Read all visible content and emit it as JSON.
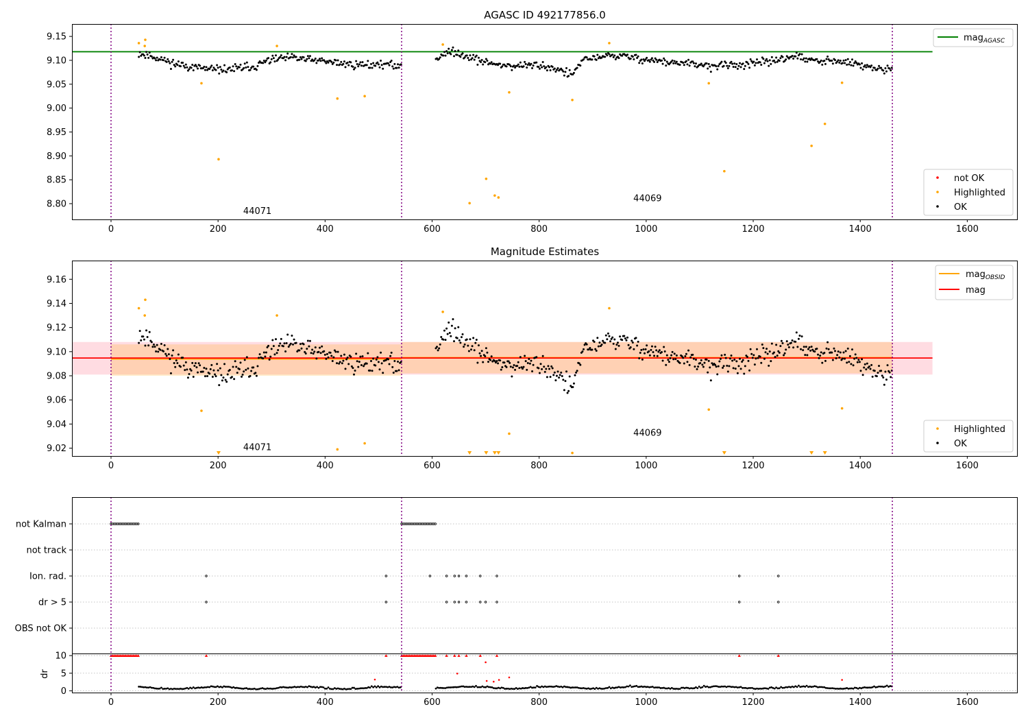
{
  "chart_data": [
    {
      "type": "scatter",
      "title": "AGASC ID 492177856.0",
      "xlim": [
        -73,
        1693
      ],
      "ylim": [
        8.767,
        9.176
      ],
      "xticks": [
        0,
        200,
        400,
        600,
        800,
        1000,
        1200,
        1400,
        1600
      ],
      "yticks": [
        8.8,
        8.85,
        8.9,
        8.95,
        9.0,
        9.05,
        9.1,
        9.15
      ],
      "hline": {
        "name": "mag",
        "subscript": "AGASC",
        "value": 9.118,
        "color": "#008000",
        "x_range": [
          -73,
          1535
        ]
      },
      "obsid_boundaries": [
        0,
        543,
        1460
      ],
      "obsid_labels": [
        {
          "text": "44071",
          "x": 271,
          "y": 8.784
        },
        {
          "text": "44069",
          "x": 1000,
          "y": 8.811
        }
      ],
      "legend": {
        "position": "lower-right",
        "entries": [
          {
            "label": "not OK",
            "color": "#ff0000"
          },
          {
            "label": "Highlighted",
            "color": "#ffa500"
          },
          {
            "label": "OK",
            "color": "#000000"
          }
        ]
      },
      "highlighted_points": [
        [
          52,
          9.136
        ],
        [
          63,
          9.13
        ],
        [
          64,
          9.143
        ],
        [
          169,
          9.052
        ],
        [
          201,
          8.893
        ],
        [
          310,
          9.13
        ],
        [
          423,
          9.02
        ],
        [
          474,
          9.025
        ],
        [
          620,
          9.133
        ],
        [
          670,
          8.801
        ],
        [
          701,
          8.852
        ],
        [
          717,
          8.817
        ],
        [
          724,
          8.813
        ],
        [
          744,
          9.033
        ],
        [
          862,
          9.017
        ],
        [
          931,
          9.136
        ],
        [
          1117,
          9.052
        ],
        [
          1146,
          8.868
        ],
        [
          1309,
          8.921
        ],
        [
          1334,
          8.967
        ],
        [
          1366,
          9.053
        ]
      ],
      "ok_segments": [
        {
          "x0": 52,
          "x1": 543,
          "step": 2,
          "anchors": [
            [
              52,
              9.115
            ],
            [
              80,
              9.108
            ],
            [
              120,
              9.092
            ],
            [
              160,
              9.085
            ],
            [
              190,
              9.08
            ],
            [
              230,
              9.082
            ],
            [
              270,
              9.088
            ],
            [
              300,
              9.102
            ],
            [
              340,
              9.105
            ],
            [
              380,
              9.1
            ],
            [
              420,
              9.095
            ],
            [
              460,
              9.09
            ],
            [
              500,
              9.092
            ],
            [
              543,
              9.088
            ]
          ]
        },
        {
          "x0": 607,
          "x1": 1460,
          "step": 2,
          "anchors": [
            [
              607,
              9.102
            ],
            [
              625,
              9.118
            ],
            [
              660,
              9.112
            ],
            [
              700,
              9.095
            ],
            [
              750,
              9.088
            ],
            [
              800,
              9.09
            ],
            [
              840,
              9.08
            ],
            [
              860,
              9.068
            ],
            [
              880,
              9.098
            ],
            [
              920,
              9.11
            ],
            [
              960,
              9.108
            ],
            [
              1000,
              9.102
            ],
            [
              1040,
              9.096
            ],
            [
              1080,
              9.092
            ],
            [
              1120,
              9.088
            ],
            [
              1160,
              9.09
            ],
            [
              1200,
              9.092
            ],
            [
              1240,
              9.1
            ],
            [
              1280,
              9.11
            ],
            [
              1300,
              9.1
            ],
            [
              1340,
              9.098
            ],
            [
              1380,
              9.095
            ],
            [
              1420,
              9.085
            ],
            [
              1460,
              9.078
            ]
          ]
        }
      ]
    },
    {
      "type": "scatter",
      "title": "Magnitude Estimates",
      "xlim": [
        -73,
        1693
      ],
      "ylim": [
        9.0135,
        9.1755
      ],
      "xticks": [
        0,
        200,
        400,
        600,
        800,
        1000,
        1200,
        1400,
        1600
      ],
      "yticks": [
        9.02,
        9.04,
        9.06,
        9.08,
        9.1,
        9.12,
        9.14,
        9.16
      ],
      "mag": {
        "name": "mag",
        "value": 9.0947,
        "color": "#ff0000",
        "band": [
          9.081,
          9.108
        ],
        "band_color": "#ffc0cb",
        "x_range": [
          -73,
          1535
        ]
      },
      "mag_obsid": {
        "name": "mag",
        "subscript": "OBSID",
        "color": "#ffa500",
        "segments": [
          {
            "x0": 0,
            "x1": 543,
            "value": 9.094,
            "band": [
              9.08,
              9.106
            ]
          },
          {
            "x0": 543,
            "x1": 1460,
            "value": 9.095,
            "band": [
              9.082,
              9.108
            ]
          }
        ]
      },
      "obsid_boundaries": [
        0,
        543,
        1460
      ],
      "obsid_labels": [
        {
          "text": "44071",
          "x": 271,
          "y": 9.0205
        },
        {
          "text": "44069",
          "x": 1000,
          "y": 9.0325
        }
      ],
      "legend": {
        "positions": [
          "top-right",
          "lower-right"
        ],
        "top": [
          {
            "label": "mag",
            "subscript": "OBSID",
            "color": "#ffa500"
          },
          {
            "label": "mag",
            "color": "#ff0000"
          }
        ],
        "bottom": [
          {
            "label": "Highlighted",
            "color": "#ffa500"
          },
          {
            "label": "OK",
            "color": "#000000"
          }
        ]
      },
      "highlighted_points": [
        [
          52,
          9.136
        ],
        [
          63,
          9.13
        ],
        [
          64,
          9.143
        ],
        [
          169,
          9.051
        ],
        [
          310,
          9.13
        ],
        [
          423,
          9.019
        ],
        [
          474,
          9.024
        ],
        [
          620,
          9.133
        ],
        [
          744,
          9.032
        ],
        [
          862,
          9.016
        ],
        [
          931,
          9.136
        ],
        [
          1117,
          9.052
        ],
        [
          1366,
          9.053
        ]
      ],
      "clipped_markers_x": [
        201,
        670,
        701,
        717,
        724,
        1146,
        1309,
        1334
      ],
      "ok_segments": [
        {
          "x0": 52,
          "x1": 543,
          "step": 2,
          "anchors": [
            [
              52,
              9.115
            ],
            [
              80,
              9.108
            ],
            [
              120,
              9.092
            ],
            [
              160,
              9.085
            ],
            [
              190,
              9.08
            ],
            [
              230,
              9.082
            ],
            [
              270,
              9.088
            ],
            [
              300,
              9.102
            ],
            [
              340,
              9.105
            ],
            [
              380,
              9.1
            ],
            [
              420,
              9.095
            ],
            [
              460,
              9.09
            ],
            [
              500,
              9.092
            ],
            [
              543,
              9.088
            ]
          ]
        },
        {
          "x0": 607,
          "x1": 1460,
          "step": 2,
          "anchors": [
            [
              607,
              9.102
            ],
            [
              625,
              9.118
            ],
            [
              660,
              9.112
            ],
            [
              700,
              9.095
            ],
            [
              750,
              9.088
            ],
            [
              800,
              9.09
            ],
            [
              840,
              9.08
            ],
            [
              860,
              9.068
            ],
            [
              880,
              9.098
            ],
            [
              920,
              9.11
            ],
            [
              960,
              9.108
            ],
            [
              1000,
              9.102
            ],
            [
              1040,
              9.096
            ],
            [
              1080,
              9.092
            ],
            [
              1120,
              9.088
            ],
            [
              1160,
              9.09
            ],
            [
              1200,
              9.092
            ],
            [
              1240,
              9.1
            ],
            [
              1280,
              9.11
            ],
            [
              1300,
              9.1
            ],
            [
              1340,
              9.098
            ],
            [
              1380,
              9.095
            ],
            [
              1420,
              9.085
            ],
            [
              1460,
              9.078
            ]
          ]
        }
      ]
    },
    {
      "type": "scatter",
      "xlim": [
        -73,
        1693
      ],
      "xticks": [
        0,
        200,
        400,
        600,
        800,
        1000,
        1200,
        1400,
        1600
      ],
      "flag_rows": [
        "not Kalman",
        "not track",
        "Ion. rad.",
        "dr > 5",
        "OBS not OK"
      ],
      "flags": {
        "not Kalman": {
          "ranges": [
            [
              0,
              52
            ],
            [
              543,
              607
            ]
          ],
          "step": 3
        },
        "not track": {
          "x": []
        },
        "Ion. rad.": {
          "x": [
            178,
            514,
            596,
            627,
            642,
            650,
            664,
            690,
            721,
            1174,
            1247
          ]
        },
        "dr > 5": {
          "x": [
            178,
            514,
            627,
            642,
            650,
            664,
            690,
            700,
            721,
            1174,
            1247
          ]
        },
        "OBS not OK": {
          "x": []
        }
      },
      "obsid_boundaries": [
        0,
        543,
        1460
      ],
      "dr": {
        "ylabel": "dr",
        "yticks": [
          0,
          5,
          10
        ],
        "ylim": [
          -0.5,
          10.6
        ],
        "capped_value": 10,
        "capped_ranges": [
          [
            0,
            52
          ],
          [
            543,
            607
          ]
        ],
        "capped_points": [
          178,
          514,
          627,
          642,
          650,
          664,
          690,
          721,
          1174,
          1247
        ],
        "red_points": [
          [
            493,
            3.2
          ],
          [
            700,
            8.1
          ],
          [
            647,
            4.9
          ],
          [
            702,
            2.8
          ],
          [
            715,
            2.6
          ],
          [
            725,
            3.1
          ],
          [
            744,
            3.8
          ],
          [
            1366,
            3.1
          ]
        ],
        "ok_segments": [
          {
            "x0": 52,
            "x1": 543,
            "step": 3,
            "base": 0.7
          },
          {
            "x0": 607,
            "x1": 1460,
            "step": 3,
            "base": 0.8
          }
        ]
      }
    }
  ]
}
